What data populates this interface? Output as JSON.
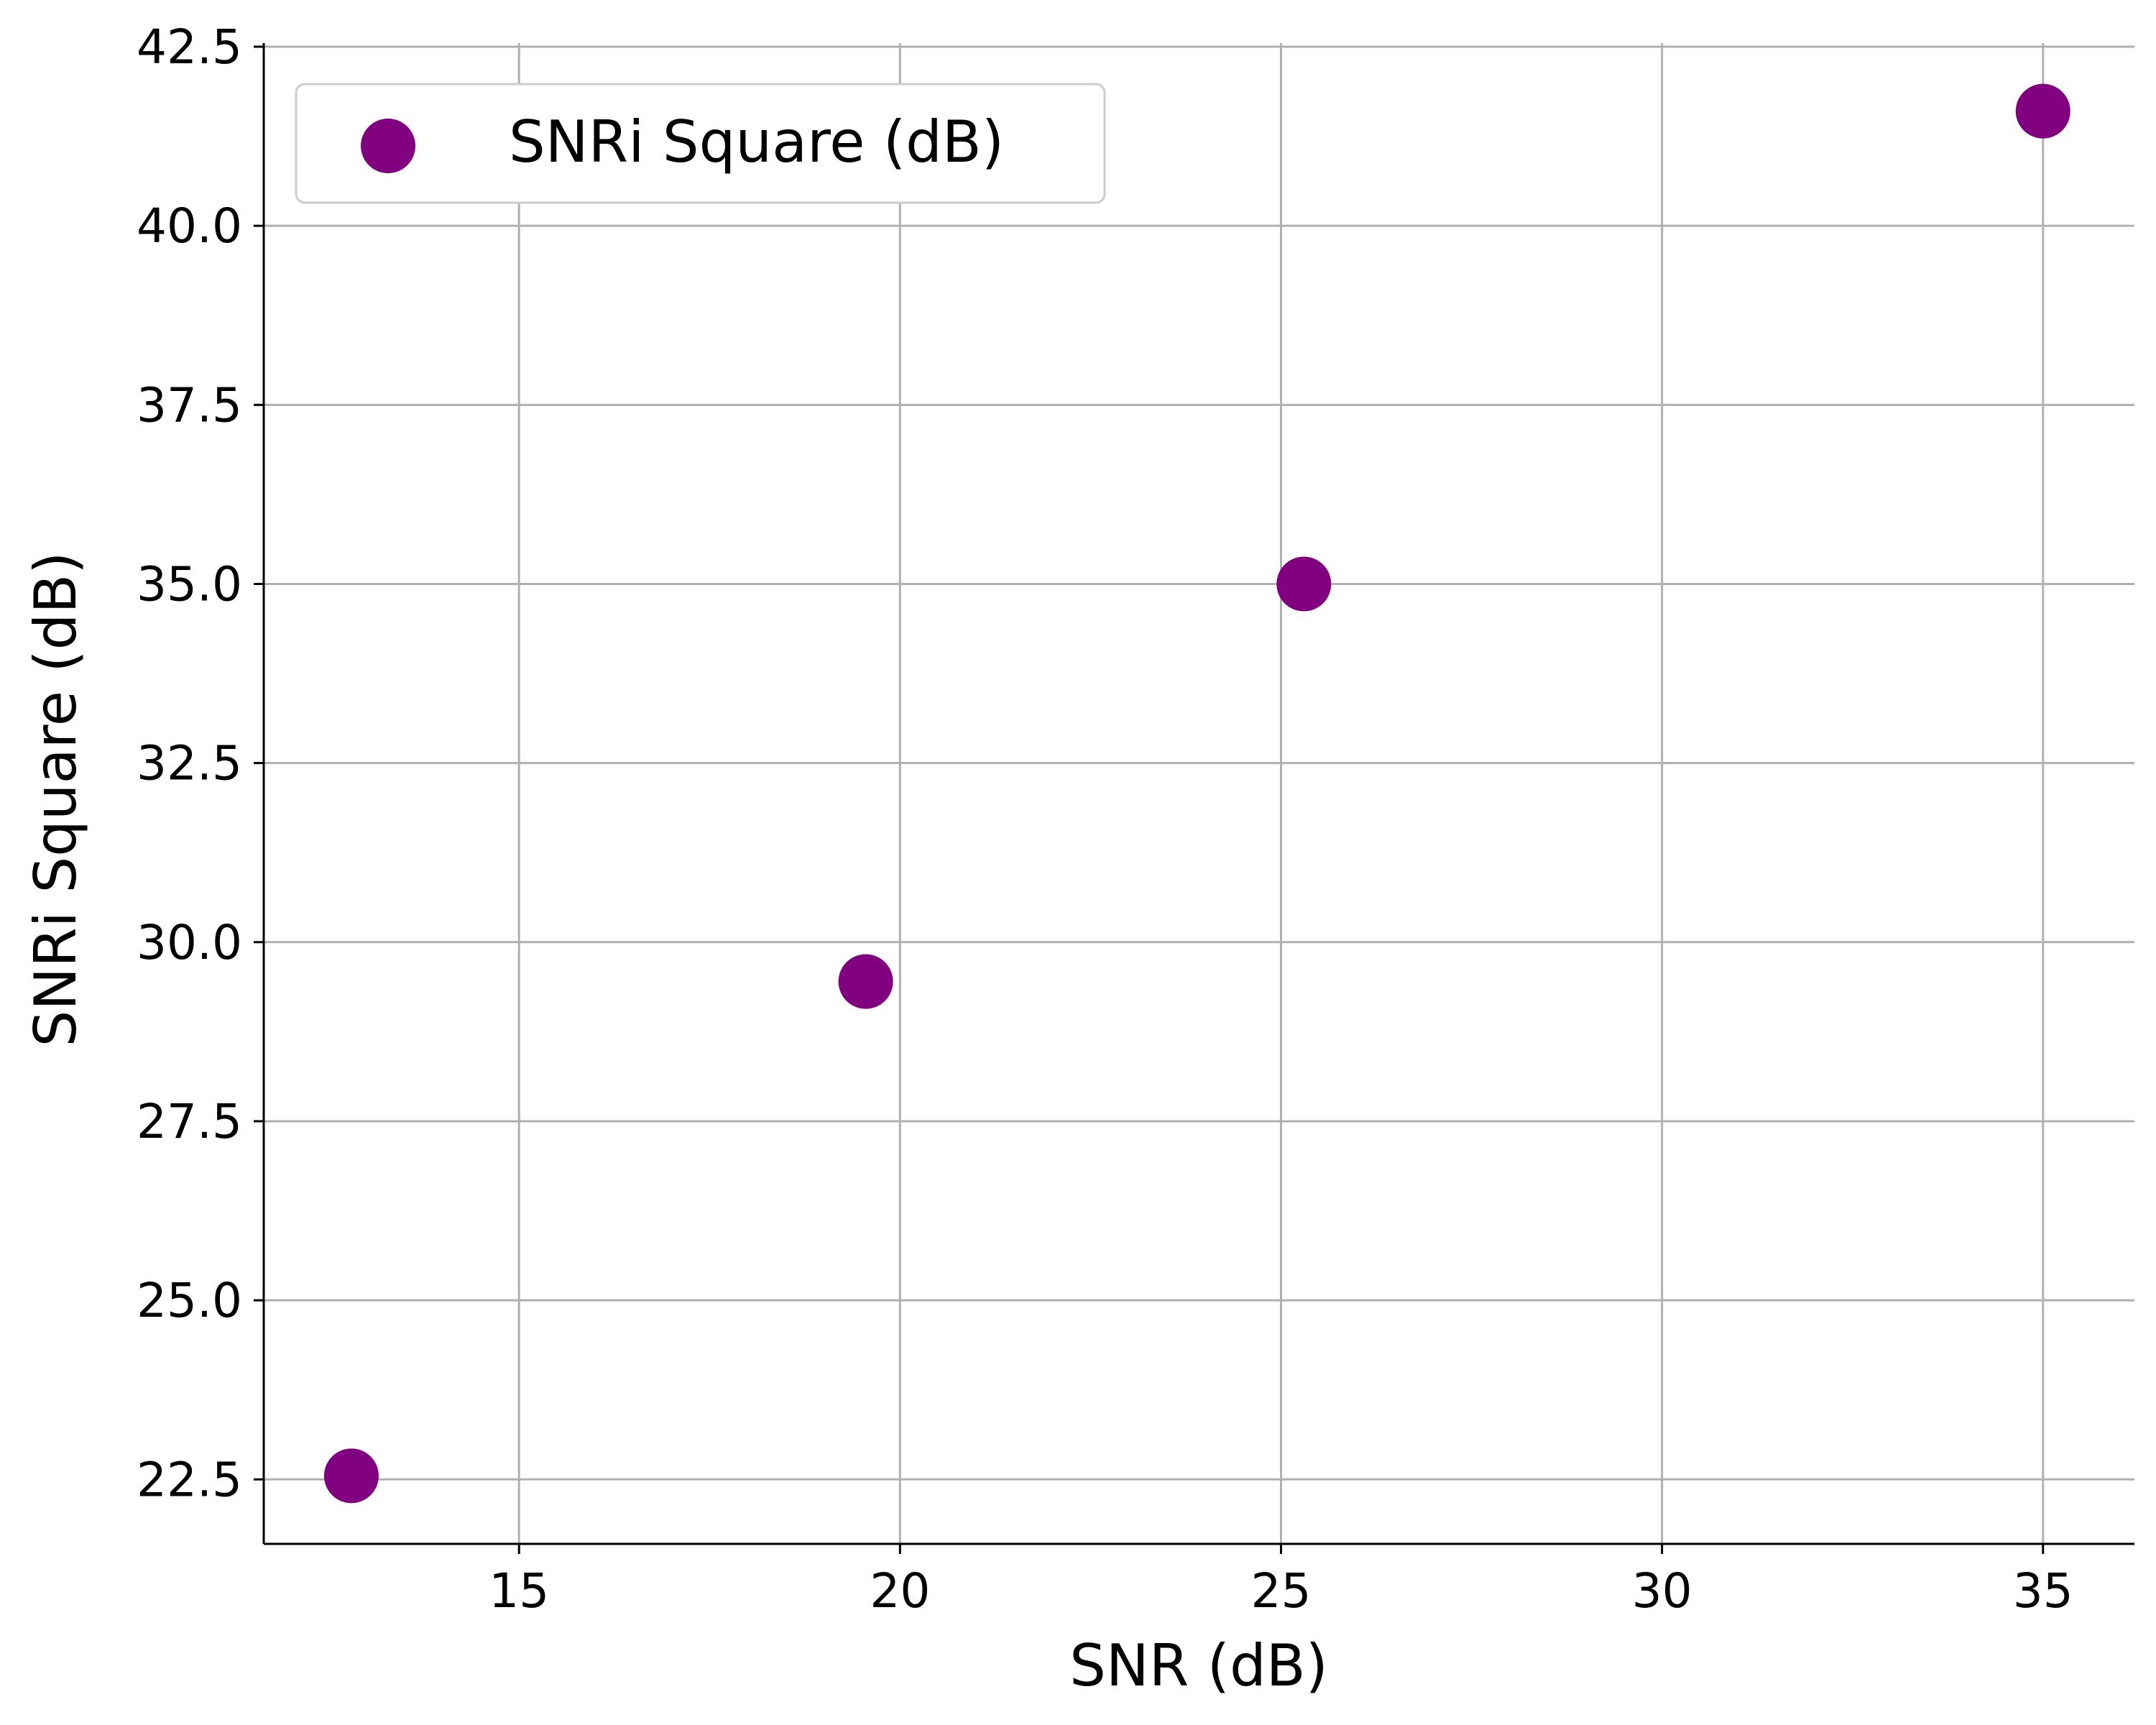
{
  "chart_data": {
    "type": "scatter",
    "title": "",
    "xlabel": "SNR (dB)",
    "ylabel": "SNRi Square (dB)",
    "xlim": [
      11.65,
      36.2
    ],
    "ylim": [
      21.6,
      42.55
    ],
    "xticks": [
      "15",
      "20",
      "25",
      "30",
      "35"
    ],
    "xtick_values": [
      15,
      20,
      25,
      30,
      35
    ],
    "yticks": [
      "22.5",
      "25.0",
      "27.5",
      "30.0",
      "32.5",
      "35.0",
      "37.5",
      "40.0",
      "42.5"
    ],
    "ytick_values": [
      22.5,
      25.0,
      27.5,
      30.0,
      32.5,
      35.0,
      37.5,
      40.0,
      42.5
    ],
    "grid": true,
    "legend_position": "top-left",
    "series": [
      {
        "name": "SNRi Square (dB)",
        "color": "#800080",
        "points": [
          {
            "x": 12.8,
            "y": 22.55
          },
          {
            "x": 19.55,
            "y": 29.45
          },
          {
            "x": 25.3,
            "y": 35.0
          },
          {
            "x": 35.0,
            "y": 41.6
          }
        ]
      }
    ]
  }
}
